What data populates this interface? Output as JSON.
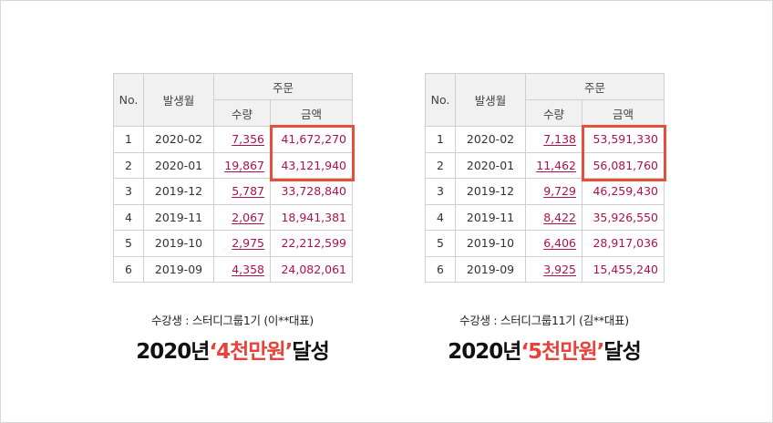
{
  "left": {
    "headers": {
      "no": "No.",
      "month": "발생월",
      "order": "주문",
      "qty": "수량",
      "amount": "금액"
    },
    "rows": [
      {
        "no": "1",
        "month": "2020-02",
        "qty": "7,356",
        "amount": "41,672,270"
      },
      {
        "no": "2",
        "month": "2020-01",
        "qty": "19,867",
        "amount": "43,121,940"
      },
      {
        "no": "3",
        "month": "2019-12",
        "qty": "5,787",
        "amount": "33,728,840"
      },
      {
        "no": "4",
        "month": "2019-11",
        "qty": "2,067",
        "amount": "18,941,381"
      },
      {
        "no": "5",
        "month": "2019-10",
        "qty": "2,975",
        "amount": "22,212,599"
      },
      {
        "no": "6",
        "month": "2019-09",
        "qty": "4,358",
        "amount": "24,082,061"
      }
    ],
    "caption_sub": "수강생 : 스터디그룹1기 (이**대표)",
    "caption_pre": "2020년",
    "caption_em": "‘4천만원’",
    "caption_post": "달성"
  },
  "right": {
    "headers": {
      "no": "No.",
      "month": "발생월",
      "order": "주문",
      "qty": "수량",
      "amount": "금액"
    },
    "rows": [
      {
        "no": "1",
        "month": "2020-02",
        "qty": "7,138",
        "amount": "53,591,330"
      },
      {
        "no": "2",
        "month": "2020-01",
        "qty": "11,462",
        "amount": "56,081,760"
      },
      {
        "no": "3",
        "month": "2019-12",
        "qty": "9,729",
        "amount": "46,259,430"
      },
      {
        "no": "4",
        "month": "2019-11",
        "qty": "8,422",
        "amount": "35,926,550"
      },
      {
        "no": "5",
        "month": "2019-10",
        "qty": "6,406",
        "amount": "28,917,036"
      },
      {
        "no": "6",
        "month": "2019-09",
        "qty": "3,925",
        "amount": "15,455,240"
      }
    ],
    "caption_sub": "수강생 : 스터디그룹11기 (김**대표)",
    "caption_pre": "2020년",
    "caption_em": "‘5천만원’",
    "caption_post": "달성"
  },
  "colors": {
    "highlight": "#e84e3c",
    "accent_text": "#b0104f",
    "caption_accent": "#e8433a"
  }
}
